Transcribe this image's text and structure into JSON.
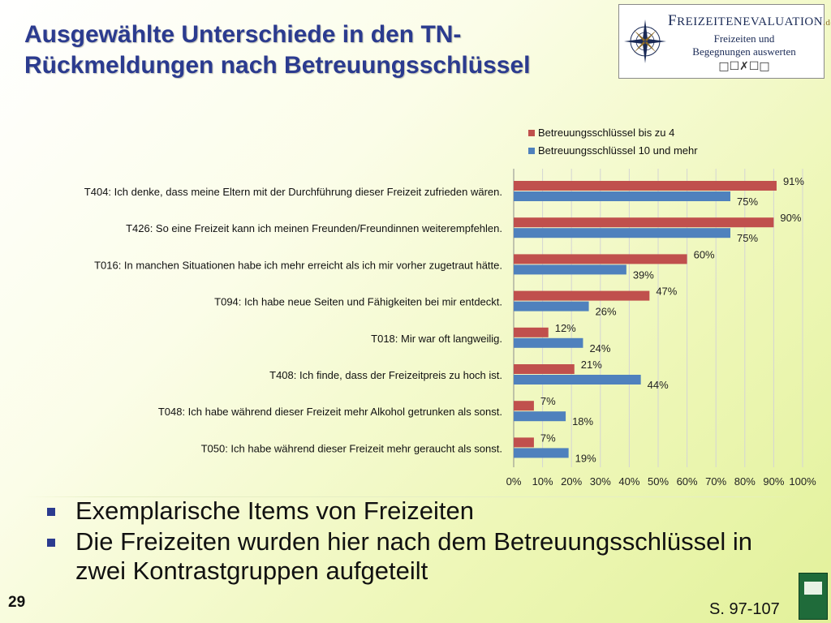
{
  "slide": {
    "title": "Ausgewählte Unterschiede in den TN-Rückmeldungen nach Betreuungsschlüssel",
    "page_number": "29",
    "page_reference": "S. 97-107"
  },
  "logo": {
    "brand_first": "F",
    "brand_rest": "REIZEITENEVALUATION",
    "brand_tld": ".de",
    "tagline_line1": "Freizeiten und",
    "tagline_line2": "Begegnungen auswerten",
    "marks": "□☐✗☐□"
  },
  "bullets": [
    "Exemplarische Items von Freizeiten",
    "Die Freizeiten wurden hier nach dem Betreuungsschlüssel in zwei Kontrastgruppen aufgeteilt"
  ],
  "colors": {
    "series_red": "#c0504d",
    "series_blue": "#4f81bd",
    "title_blue": "#2b3b8f",
    "grid": "#d4d4d4"
  },
  "chart_data": {
    "type": "bar",
    "orientation": "horizontal",
    "categories": [
      "T404: Ich denke, dass meine Eltern mit der Durchführung dieser Freizeit zufrieden wären.",
      "T426: So eine Freizeit kann ich meinen Freunden/Freundinnen  weiterempfehlen.",
      "T016: In manchen Situationen habe ich mehr erreicht als ich mir vorher zugetraut hätte.",
      "T094: Ich habe neue Seiten und Fähigkeiten bei mir entdeckt.",
      "T018: Mir war oft langweilig.",
      "T408: Ich finde, dass der Freizeitpreis zu hoch ist.",
      "T048: Ich habe während dieser Freizeit mehr Alkohol getrunken als sonst.",
      "T050: Ich habe während dieser Freizeit mehr geraucht als sonst."
    ],
    "series": [
      {
        "name": "Betreuungsschlüssel bis zu 4",
        "color": "#c0504d",
        "values": [
          91,
          90,
          60,
          47,
          12,
          21,
          7,
          7
        ]
      },
      {
        "name": "Betreuungsschlüssel 10 und mehr",
        "color": "#4f81bd",
        "values": [
          75,
          75,
          39,
          26,
          24,
          44,
          18,
          19
        ]
      }
    ],
    "xlim": [
      0,
      100
    ],
    "xticks": [
      "0%",
      "10%",
      "20%",
      "30%",
      "40%",
      "50%",
      "60%",
      "70%",
      "80%",
      "90%",
      "100%"
    ],
    "grid": true,
    "legend_position": "top-right",
    "value_suffix": "%"
  }
}
